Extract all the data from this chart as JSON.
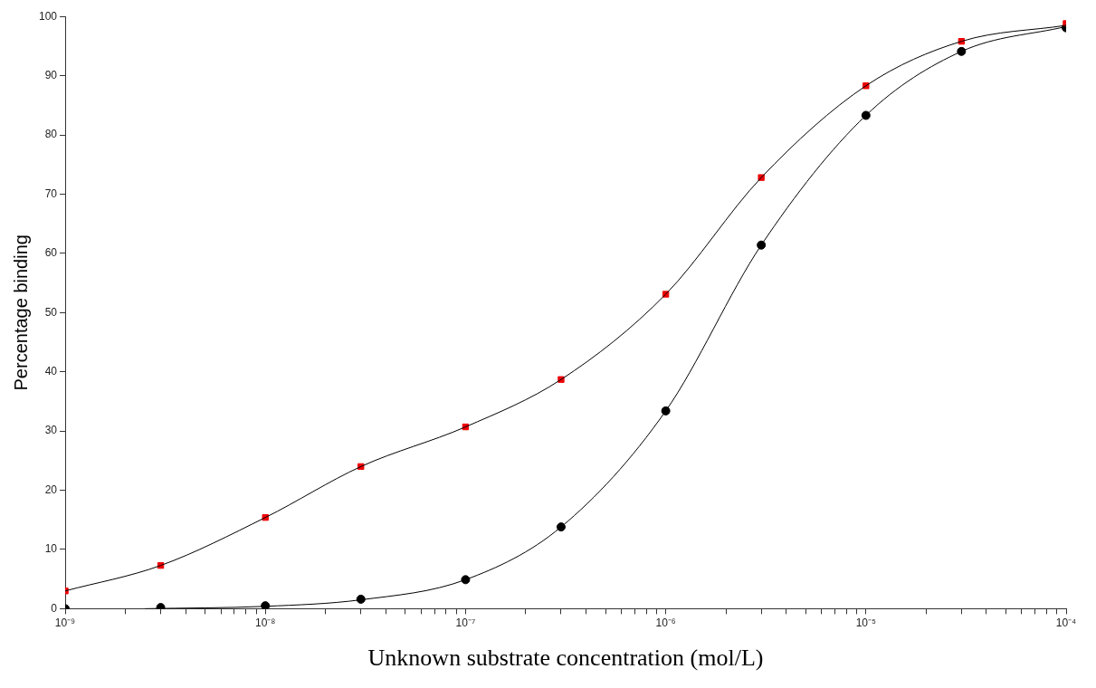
{
  "chart_data": {
    "type": "scatter",
    "xlabel": "Unknown substrate concentration (mol/L)",
    "ylabel": "Percentage binding",
    "log": "x",
    "grid": false,
    "legend": false,
    "x": [
      1e-09,
      3e-09,
      1e-08,
      3e-08,
      1e-07,
      3e-07,
      1e-06,
      3e-06,
      1e-05,
      3e-05,
      0.0001
    ],
    "series": [
      {
        "type": "line",
        "color": "#000000",
        "marker": "none",
        "x": [
          1e-09,
          3e-09,
          1e-08,
          3e-08,
          1e-07,
          3e-07,
          1e-06,
          3e-06,
          1e-05,
          3e-05,
          0.0001
        ],
        "values": [
          3,
          7.3,
          15.4,
          24,
          30.7,
          38.7,
          53.1,
          72.8,
          88.3,
          95.8,
          98.5
        ]
      },
      {
        "type": "line",
        "color": "#000000",
        "marker": "none",
        "x": [
          2.5e-09,
          1e-08,
          3e-08,
          1e-07,
          3e-07,
          1e-06,
          3e-06,
          1e-05,
          3e-05,
          0.0001
        ],
        "values": [
          0,
          0.4,
          1.5,
          4.9,
          13.8,
          33.4,
          61.4,
          83.3,
          94.1,
          98.3
        ]
      },
      {
        "color": "#ee0000",
        "marker": "square",
        "values": [
          3,
          7.3,
          15.4,
          24,
          30.7,
          38.7,
          53.1,
          72.8,
          88.3,
          95.8,
          98.8
        ]
      },
      {
        "color": "#000000",
        "marker": "circle",
        "values": [
          0,
          0.2,
          0.5,
          1.6,
          4.9,
          13.8,
          33.4,
          61.4,
          83.3,
          94.1,
          98.1
        ]
      }
    ],
    "xlim": [
      1e-09,
      0.0001
    ],
    "xticks": [
      {
        "value": 1e-09,
        "label": "10⁻⁹"
      },
      {
        "value": 2e-09,
        "label": null
      },
      {
        "value": 3e-09,
        "label": null
      },
      {
        "value": 4e-09,
        "label": null
      },
      {
        "value": 5e-09,
        "label": null
      },
      {
        "value": 6e-09,
        "label": null
      },
      {
        "value": 7e-09,
        "label": null
      },
      {
        "value": 8e-09,
        "label": null
      },
      {
        "value": 9e-09,
        "label": null
      },
      {
        "value": 1e-08,
        "label": "10⁻⁸"
      },
      {
        "value": 2e-08,
        "label": null
      },
      {
        "value": 3e-08,
        "label": null
      },
      {
        "value": 4e-08,
        "label": null
      },
      {
        "value": 5e-08,
        "label": null
      },
      {
        "value": 6e-08,
        "label": null
      },
      {
        "value": 7e-08,
        "label": null
      },
      {
        "value": 8e-08,
        "label": null
      },
      {
        "value": 9e-08,
        "label": null
      },
      {
        "value": 1e-07,
        "label": "10⁻⁷"
      },
      {
        "value": 2e-07,
        "label": null
      },
      {
        "value": 3e-07,
        "label": null
      },
      {
        "value": 4e-07,
        "label": null
      },
      {
        "value": 5e-07,
        "label": null
      },
      {
        "value": 6e-07,
        "label": null
      },
      {
        "value": 7e-07,
        "label": null
      },
      {
        "value": 8e-07,
        "label": null
      },
      {
        "value": 9e-07,
        "label": null
      },
      {
        "value": 1e-06,
        "label": "10⁻⁶"
      },
      {
        "value": 2e-06,
        "label": null
      },
      {
        "value": 3e-06,
        "label": null
      },
      {
        "value": 4e-06,
        "label": null
      },
      {
        "value": 5e-06,
        "label": null
      },
      {
        "value": 6e-06,
        "label": null
      },
      {
        "value": 7e-06,
        "label": null
      },
      {
        "value": 8e-06,
        "label": null
      },
      {
        "value": 9e-06,
        "label": null
      },
      {
        "value": 1e-05,
        "label": "10⁻⁵"
      },
      {
        "value": 2e-05,
        "label": null
      },
      {
        "value": 3e-05,
        "label": null
      },
      {
        "value": 4e-05,
        "label": null
      },
      {
        "value": 5e-05,
        "label": null
      },
      {
        "value": 6e-05,
        "label": null
      },
      {
        "value": 7e-05,
        "label": null
      },
      {
        "value": 8e-05,
        "label": null
      },
      {
        "value": 9e-05,
        "label": null
      },
      {
        "value": 0.0001,
        "label": "10⁻⁴"
      }
    ],
    "ylim": [
      0,
      100
    ],
    "yticks": [
      0,
      10,
      20,
      30,
      40,
      50,
      60,
      70,
      80,
      90,
      100
    ]
  }
}
